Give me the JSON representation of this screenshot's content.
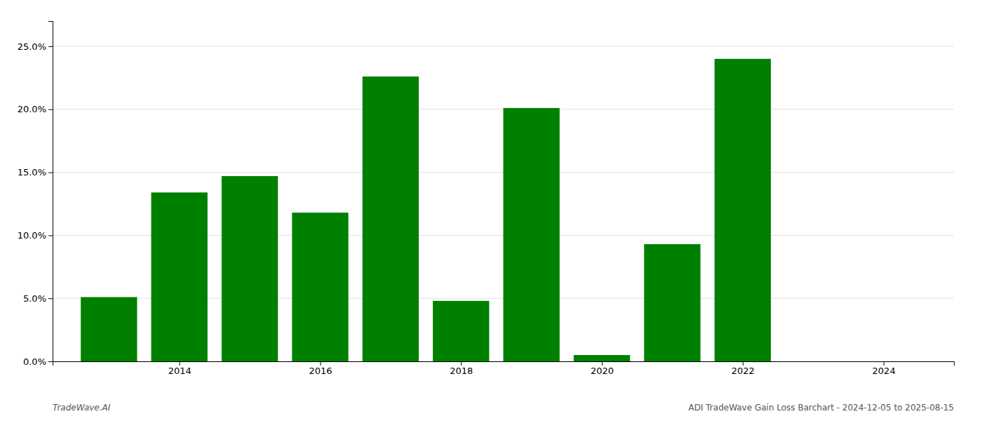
{
  "chart_data": {
    "type": "bar",
    "x": [
      2013,
      2014,
      2015,
      2016,
      2017,
      2018,
      2019,
      2020,
      2021,
      2022,
      2023
    ],
    "values": [
      0.051,
      0.134,
      0.147,
      0.118,
      0.226,
      0.048,
      0.201,
      0.005,
      0.093,
      0.24,
      0.0
    ],
    "color": "#008000",
    "xlim": [
      2012.2,
      2025.0
    ],
    "xticks": [
      2014,
      2016,
      2018,
      2020,
      2022,
      2024
    ],
    "ylim": [
      0,
      0.27
    ],
    "yticks": [
      {
        "value": 0.0,
        "label": "0.0%"
      },
      {
        "value": 0.05,
        "label": "5.0%"
      },
      {
        "value": 0.1,
        "label": "10.0%"
      },
      {
        "value": 0.15,
        "label": "15.0%"
      },
      {
        "value": 0.2,
        "label": "20.0%"
      },
      {
        "value": 0.25,
        "label": "25.0%"
      }
    ],
    "grid": true,
    "annotations": [
      "TradeWave.AI",
      "ADI TradeWave Gain Loss Barchart - 2024-12-05 to 2025-08-15"
    ]
  }
}
